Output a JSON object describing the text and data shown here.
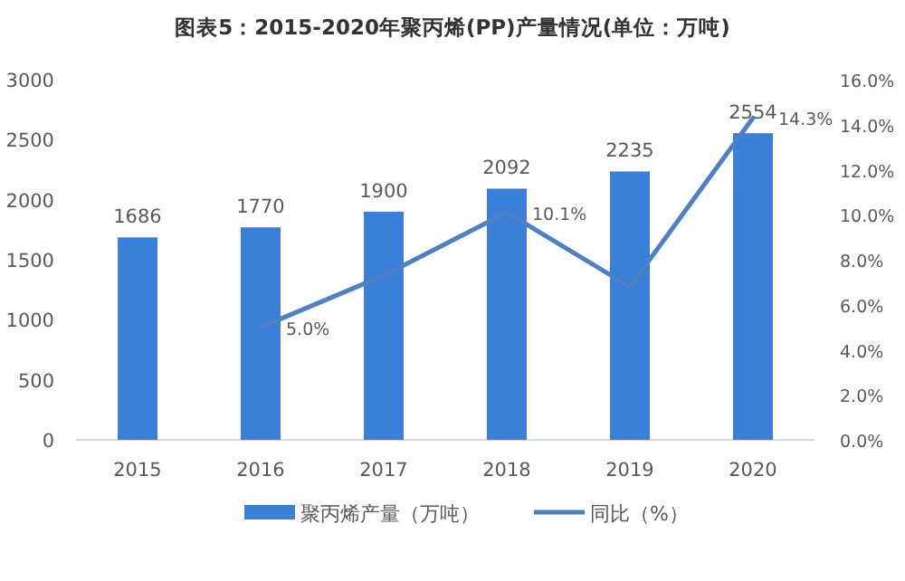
{
  "chart_data": {
    "type": "bar",
    "title": "图表5：2015-2020年聚丙烯(PP)产量情况(单位：万吨)",
    "categories": [
      "2015",
      "2016",
      "2017",
      "2018",
      "2019",
      "2020"
    ],
    "series": [
      {
        "name": "聚丙烯产量（万吨）",
        "color": "#3a7fd8",
        "values": [
          1686,
          1770,
          1900,
          2092,
          2235,
          2554
        ]
      },
      {
        "name": "同比（%）",
        "type": "line",
        "axis": "y2",
        "color": "#4d80c4",
        "values": [
          null,
          5.0,
          7.3,
          10.1,
          6.8,
          14.3
        ],
        "value_labels": [
          null,
          "5.0%",
          null,
          "10.1%",
          null,
          "14.3%"
        ]
      }
    ],
    "data_labels": true,
    "ylim": [
      0,
      3000
    ],
    "yticks": [
      0,
      500,
      1000,
      1500,
      2000,
      2500,
      3000
    ],
    "y2lim": [
      0,
      16
    ],
    "y2ticks": [
      {
        "value": 0,
        "label": "0.0%"
      },
      {
        "value": 2,
        "label": "2.0%"
      },
      {
        "value": 4,
        "label": "4.0%"
      },
      {
        "value": 6,
        "label": "6.0%"
      },
      {
        "value": 8,
        "label": "8.0%"
      },
      {
        "value": 10,
        "label": "10.0%"
      },
      {
        "value": 12,
        "label": "12.0%"
      },
      {
        "value": 14,
        "label": "14.0%"
      },
      {
        "value": 16,
        "label": "16.0%"
      }
    ],
    "legend": "bottom",
    "marker": "none"
  }
}
